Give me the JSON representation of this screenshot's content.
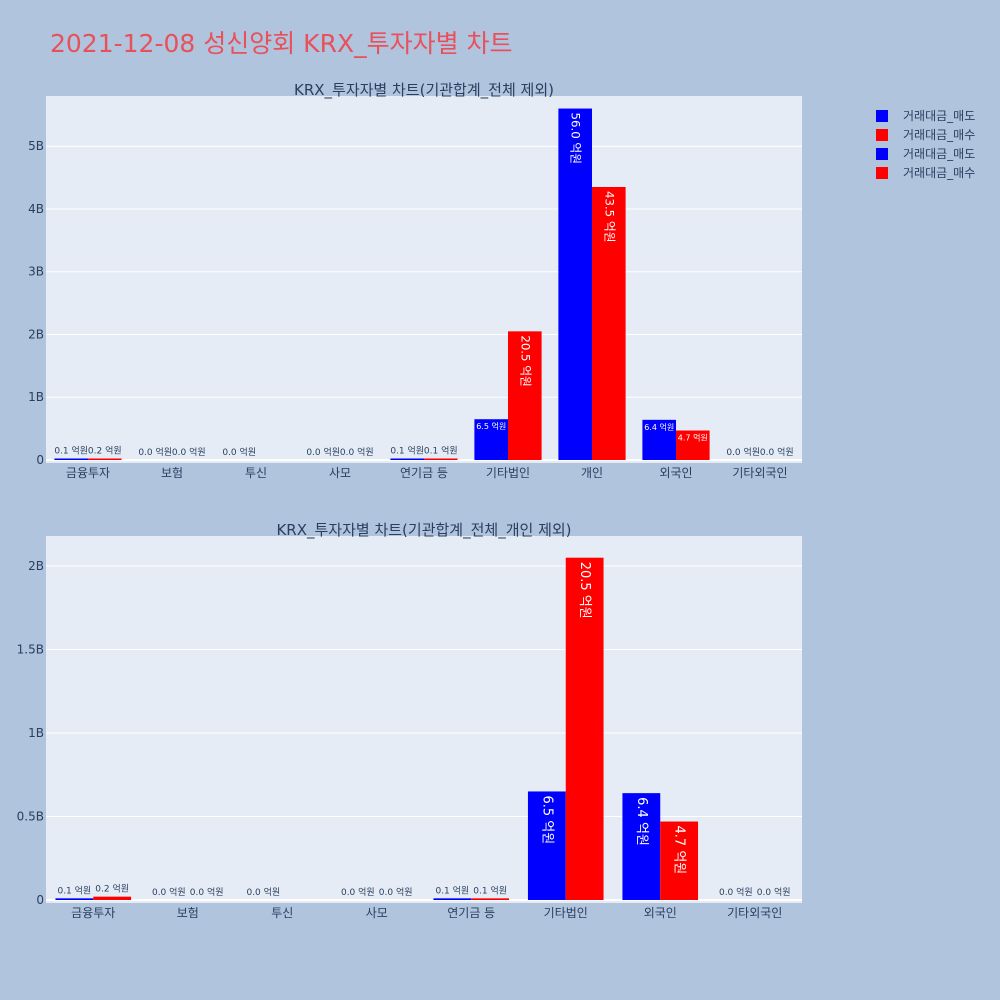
{
  "main_title": "2021-12-08 성신양회 KRX_투자자별 차트",
  "legend": [
    {
      "label": "거래대금_매도",
      "color": "#0000ff"
    },
    {
      "label": "거래대금_매수",
      "color": "#ff0000"
    },
    {
      "label": "거래대금_매도",
      "color": "#0000ff"
    },
    {
      "label": "거래대금_매수",
      "color": "#ff0000"
    }
  ],
  "chart_data": [
    {
      "type": "bar",
      "title": "KRX_투자자별 차트(기관합계_전체 제외)",
      "categories": [
        "금융투자",
        "보험",
        "투신",
        "사모",
        "연기금 등",
        "기타법인",
        "개인",
        "외국인",
        "기타외국인"
      ],
      "ylim": [
        0,
        5800000000
      ],
      "yticks": [
        0,
        1000000000,
        2000000000,
        3000000000,
        4000000000,
        5000000000
      ],
      "ytick_labels": [
        "0",
        "1B",
        "2B",
        "3B",
        "4B",
        "5B"
      ],
      "series": [
        {
          "name": "거래대금_매도",
          "color": "#0000ff",
          "values": [
            10000000,
            0,
            0,
            0,
            10000000,
            650000000,
            5600000000,
            640000000,
            0
          ],
          "labels": [
            "0.1 억원",
            "0.0 억원",
            "0.0 억원",
            "0.0 억원",
            "0.1 억원",
            "6.5 억원",
            "56.0 억원",
            "6.4 억원",
            "0.0 억원"
          ]
        },
        {
          "name": "거래대금_매수",
          "color": "#ff0000",
          "values": [
            20000000,
            0,
            null,
            0,
            10000000,
            2050000000,
            4350000000,
            470000000,
            0
          ],
          "labels": [
            "0.2 억원",
            "0.0 억원",
            "",
            "0.0 억원",
            "0.1 억원",
            "20.5 억원",
            "43.5 억원",
            "4.7 억원",
            "0.0 억원"
          ]
        }
      ]
    },
    {
      "type": "bar",
      "title": "KRX_투자자별 차트(기관합계_전체_개인 제외)",
      "categories": [
        "금융투자",
        "보험",
        "투신",
        "사모",
        "연기금 등",
        "기타법인",
        "외국인",
        "기타외국인"
      ],
      "ylim": [
        0,
        2180000000
      ],
      "yticks": [
        0,
        500000000,
        1000000000,
        1500000000,
        2000000000
      ],
      "ytick_labels": [
        "0",
        "0.5B",
        "1B",
        "1.5B",
        "2B"
      ],
      "series": [
        {
          "name": "거래대금_매도",
          "color": "#0000ff",
          "values": [
            10000000,
            0,
            0,
            0,
            10000000,
            650000000,
            640000000,
            0
          ],
          "labels": [
            "0.1 억원",
            "0.0 억원",
            "0.0 억원",
            "0.0 억원",
            "0.1 억원",
            "6.5 억원",
            "6.4 억원",
            "0.0 억원"
          ]
        },
        {
          "name": "거래대금_매수",
          "color": "#ff0000",
          "values": [
            20000000,
            0,
            null,
            0,
            10000000,
            2050000000,
            470000000,
            0
          ],
          "labels": [
            "0.2 억원",
            "0.0 억원",
            "",
            "0.0 억원",
            "0.1 억원",
            "20.5 억원",
            "4.7 억원",
            "0.0 억원"
          ]
        }
      ]
    }
  ]
}
